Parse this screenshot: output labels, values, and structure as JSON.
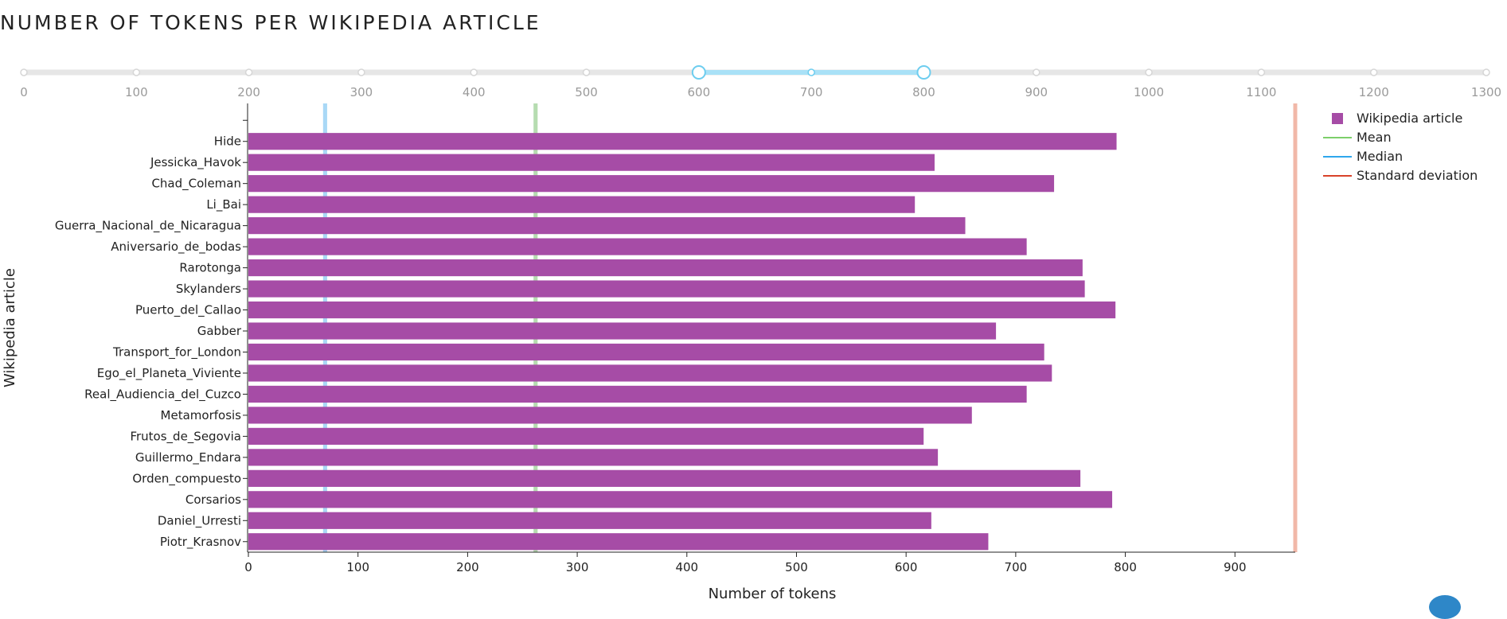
{
  "chart_data": {
    "type": "bar",
    "orientation": "horizontal",
    "title": "NUMBER OF TOKENS PER WIKIPEDIA ARTICLE",
    "xlabel": "Number of tokens",
    "ylabel": "Wikipedia article",
    "xlim": [
      0,
      955
    ],
    "x_ticks": [
      "0",
      "100",
      "200",
      "300",
      "400",
      "500",
      "600",
      "700",
      "800",
      "900"
    ],
    "categories": [
      "",
      "Hide",
      "Jessicka_Havok",
      "Chad_Coleman",
      "Li_Bai",
      "Guerra_Nacional_de_Nicaragua",
      "Aniversario_de_bodas",
      "Rarotonga",
      "Skylanders",
      "Puerto_del_Callao",
      "Gabber",
      "Transport_for_London",
      "Ego_el_Planeta_Viviente",
      "Real_Audiencia_del_Cuzco",
      "Metamorfosis",
      "Frutos_de_Segovia",
      "Guillermo_Endara",
      "Orden_compuesto",
      "Corsarios",
      "Daniel_Urresti",
      "Piotr_Krasnov"
    ],
    "series": [
      {
        "name": "Wikipedia article",
        "color": "#a64ca6",
        "values": [
          null,
          792,
          626,
          735,
          608,
          654,
          710,
          761,
          763,
          791,
          682,
          726,
          733,
          710,
          660,
          616,
          629,
          759,
          788,
          623,
          675
        ]
      }
    ],
    "reference_lines": [
      {
        "name": "Mean",
        "value": 262,
        "color": "#b7dcb0"
      },
      {
        "name": "Median",
        "value": 70,
        "color": "#a9d8f5"
      },
      {
        "name": "Standard deviation",
        "value": 955,
        "color": "#f1b8a8"
      }
    ],
    "legend": {
      "placement": "top-right",
      "entries": [
        {
          "label": "Wikipedia article",
          "type": "square",
          "color": "#a64ca6"
        },
        {
          "label": "Mean",
          "type": "line",
          "color": "#7ccf6a"
        },
        {
          "label": "Median",
          "type": "line",
          "color": "#2ea7ec"
        },
        {
          "label": "Standard deviation",
          "type": "line",
          "color": "#d9432a"
        }
      ]
    },
    "grid": false
  },
  "range_slider": {
    "min": 0,
    "max": 1300,
    "ticks": [
      "0",
      "100",
      "200",
      "300",
      "400",
      "500",
      "600",
      "700",
      "800",
      "900",
      "1000",
      "1100",
      "1200",
      "1300"
    ],
    "selected_from": 600,
    "selected_to": 800,
    "track_color": "#e6e6e6",
    "active_color": "#a9e1f7",
    "handle_color": "#6dcdef"
  }
}
